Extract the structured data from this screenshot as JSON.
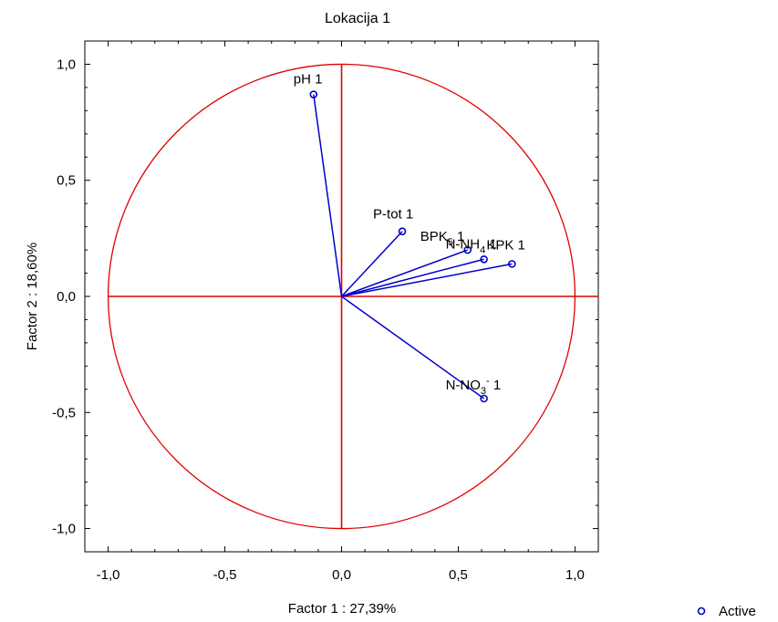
{
  "chart_data": {
    "type": "scatter",
    "title": "Lokacija 1",
    "xlabel": "Factor 1 : 27,39%",
    "ylabel": "Factor 2 : 18,60%",
    "xlim": [
      -1.1,
      1.1
    ],
    "ylim": [
      -1.1,
      1.1
    ],
    "x_ticks": [
      "-1,0",
      "-0,5",
      "0,0",
      "0,5",
      "1,0"
    ],
    "x_tick_values": [
      -1.0,
      -0.5,
      0.0,
      0.5,
      1.0
    ],
    "y_ticks": [
      "1,0",
      "0,5",
      "0,0",
      "-0,5",
      "-1,0"
    ],
    "y_tick_values": [
      1.0,
      0.5,
      0.0,
      -0.5,
      -1.0
    ],
    "unit_circle": true,
    "legend": {
      "placement": "bottom-right",
      "entries": [
        "Active"
      ]
    },
    "colors": {
      "points": "#0000cc",
      "circle": "#e00000",
      "axes": "#000000"
    },
    "points": [
      {
        "label": "pH 1",
        "x": -0.12,
        "y": 0.87
      },
      {
        "label": "P-tot 1",
        "x": 0.26,
        "y": 0.28
      },
      {
        "label": "BPK5 1",
        "label_main": "BPK",
        "label_sub": "5",
        "label_tail": " 1",
        "x": 0.54,
        "y": 0.2
      },
      {
        "label": "N-NH4 1",
        "label_main": "N-NH",
        "label_sub": "4",
        "label_tail": " 1",
        "x": 0.61,
        "y": 0.16
      },
      {
        "label": "KPK 1",
        "x": 0.73,
        "y": 0.14
      },
      {
        "label": "N-NO3- 1",
        "label_main": "N-NO",
        "label_sub": "3",
        "label_sup": "-",
        "label_tail": "  1",
        "x": 0.61,
        "y": -0.44
      }
    ]
  }
}
